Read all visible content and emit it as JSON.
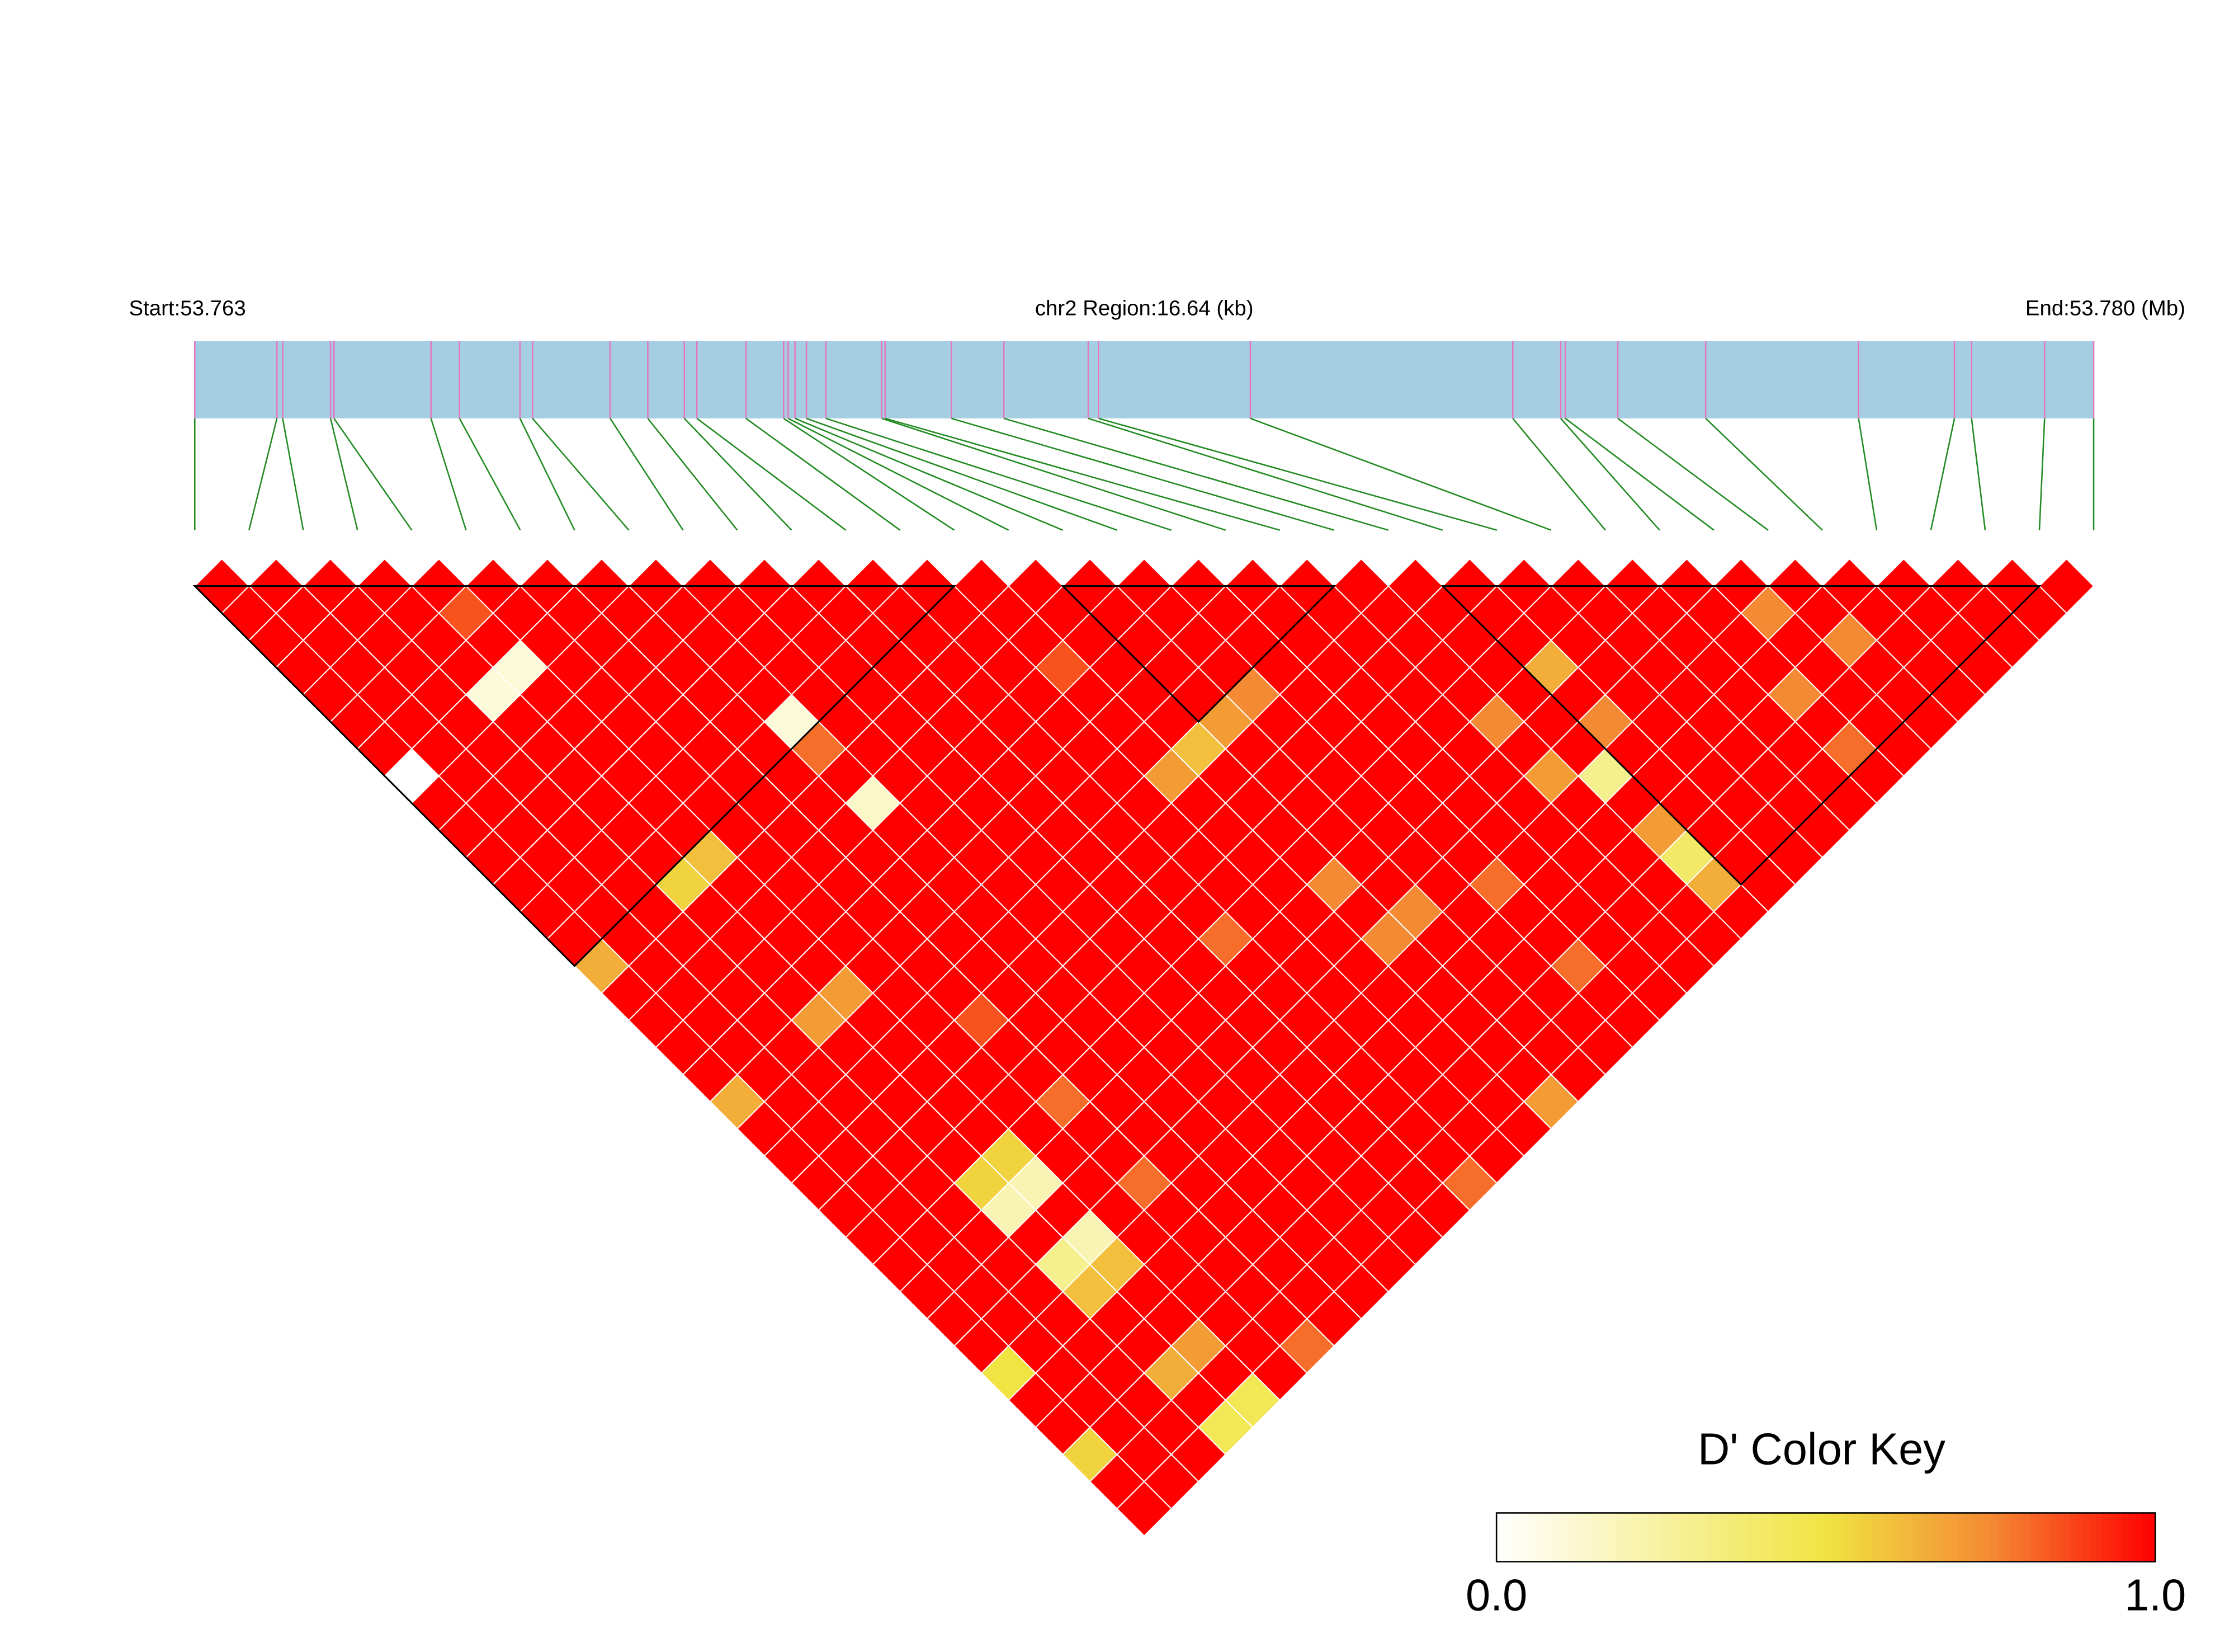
{
  "chart_data": {
    "type": "ld_heatmap",
    "start": {
      "value": 53.763,
      "label": "Start:53.763"
    },
    "end": {
      "value": 53.77964,
      "label": "End:53.780 (Mb)"
    },
    "region_label": "chr2 Region:16.64 (kb)",
    "snp_positions": [
      53.763,
      53.76372,
      53.76377,
      53.76419,
      53.76422,
      53.76507,
      53.76532,
      53.76585,
      53.76596,
      53.76664,
      53.76697,
      53.76729,
      53.7674,
      53.76783,
      53.76816,
      53.7682,
      53.76826,
      53.76836,
      53.76853,
      53.76902,
      53.76905,
      53.76963,
      53.77009,
      53.77083,
      53.77092,
      53.77225,
      53.77455,
      53.77497,
      53.77501,
      53.77547,
      53.77624,
      53.77758,
      53.77842,
      53.77857,
      53.77921,
      53.77964
    ],
    "dprime": [
      [
        1,
        1,
        1,
        1,
        1,
        1,
        1,
        0,
        1,
        1,
        1,
        1,
        1,
        1,
        0.65,
        1,
        1,
        1,
        1,
        0.65,
        1,
        1,
        1,
        1,
        1,
        1,
        1,
        1,
        1,
        0.5,
        1,
        1,
        0.55,
        1,
        1
      ],
      [
        1,
        1,
        1,
        1,
        1,
        1,
        1,
        1,
        1,
        1,
        1,
        1,
        1,
        1,
        1,
        1,
        1,
        1,
        1,
        1,
        1,
        1,
        1,
        1,
        1,
        1,
        1,
        1,
        1,
        1,
        1,
        1,
        1,
        1
      ],
      [
        1,
        1,
        1,
        1,
        1,
        1,
        1,
        1,
        1,
        1,
        1,
        1,
        1,
        1,
        1,
        1,
        1,
        1,
        1,
        1,
        1,
        1,
        1,
        1,
        1,
        1,
        1,
        1,
        1,
        1,
        1,
        1,
        1
      ],
      [
        1,
        1,
        1,
        1,
        0.1,
        1,
        1,
        1,
        1,
        1,
        1,
        0.55,
        1,
        1,
        1,
        1,
        0.7,
        1,
        1,
        1,
        1,
        1,
        0.55,
        0.2,
        1,
        0.3,
        0.6,
        1,
        1,
        0.65,
        1,
        0.45
      ],
      [
        1,
        0.85,
        1,
        0.1,
        1,
        1,
        1,
        1,
        1,
        1,
        0.6,
        1,
        1,
        1,
        1,
        0.7,
        1,
        1,
        1,
        1,
        1,
        0.55,
        0.2,
        1,
        0.2,
        0.6,
        1,
        1,
        0.7,
        1,
        0.45
      ],
      [
        1,
        1,
        1,
        1,
        1,
        1,
        1,
        1,
        1,
        1,
        1,
        1,
        1,
        1,
        1,
        1,
        1,
        1,
        1,
        1,
        1,
        1,
        1,
        1,
        1,
        1,
        1,
        1,
        1,
        1
      ],
      [
        1,
        1,
        1,
        1,
        1,
        1,
        1,
        1,
        1,
        1,
        1,
        1,
        1,
        1,
        1,
        1,
        0.85,
        1,
        1,
        0.8,
        1,
        1,
        0.8,
        1,
        1,
        1,
        1,
        1,
        0.8
      ],
      [
        1,
        1,
        1,
        1,
        1,
        1,
        1,
        1,
        1,
        1,
        1,
        1,
        1,
        1,
        1,
        1,
        1,
        1,
        1,
        1,
        1,
        1,
        1,
        1,
        1,
        1,
        1,
        1
      ],
      [
        1,
        1,
        1,
        1,
        1,
        0.1,
        0.8,
        1,
        0.15,
        1,
        1,
        1,
        1,
        1,
        1,
        1,
        1,
        1,
        1,
        1,
        1,
        1,
        1,
        1,
        1,
        1,
        1
      ],
      [
        1,
        1,
        1,
        1,
        1,
        1,
        1,
        1,
        1,
        1,
        1,
        1,
        1,
        1,
        1,
        1,
        1,
        1,
        1,
        1,
        1,
        1,
        1,
        1,
        1,
        1
      ],
      [
        1,
        1,
        1,
        1,
        1,
        1,
        1,
        1,
        1,
        1,
        1,
        1,
        1,
        1,
        1,
        1,
        1,
        1,
        1,
        1,
        1,
        1,
        1,
        1,
        1
      ],
      [
        1,
        1,
        1,
        1,
        1,
        1,
        1,
        1,
        1,
        1,
        1,
        1,
        1,
        1,
        1,
        1,
        1,
        1,
        1,
        1,
        1,
        1,
        1,
        1
      ],
      [
        1,
        1,
        1,
        1,
        1,
        1,
        1,
        1,
        1,
        1,
        1,
        1,
        1,
        0.8,
        1,
        1,
        1,
        1,
        1,
        1,
        1,
        1,
        0.8
      ],
      [
        1,
        1,
        1,
        1,
        1,
        1,
        1,
        1,
        1,
        1,
        1,
        1,
        1,
        1,
        1,
        1,
        1,
        1,
        1,
        1,
        1,
        1
      ],
      [
        1,
        1,
        1,
        0.85,
        1,
        1,
        1,
        0.7,
        1,
        1,
        1,
        1,
        1,
        1,
        1,
        1,
        1,
        1,
        1,
        1,
        1
      ],
      [
        1,
        1,
        1,
        1,
        1,
        1,
        0.6,
        1,
        1,
        1,
        1,
        0.75,
        1,
        0.75,
        1,
        1,
        1,
        1,
        1,
        0.7
      ],
      [
        1,
        1,
        1,
        1,
        1,
        0.7,
        1,
        1,
        1,
        1,
        1,
        1,
        0.75,
        1,
        1,
        1,
        1,
        1,
        1
      ],
      [
        1,
        1,
        1,
        1,
        0.75,
        1,
        1,
        1,
        1,
        1,
        1,
        1,
        1,
        1,
        1,
        1,
        1,
        1
      ],
      [
        1,
        1,
        1,
        1,
        1,
        1,
        1,
        1,
        1,
        1,
        1,
        0.8,
        1,
        1,
        0.8,
        1,
        1
      ],
      [
        1,
        1,
        1,
        1,
        1,
        1,
        1,
        1,
        1,
        1,
        1,
        1,
        1,
        1,
        1,
        1
      ],
      [
        1,
        1,
        1,
        1,
        1,
        1,
        1,
        1,
        1,
        1,
        1,
        1,
        1,
        1,
        1
      ],
      [
        1,
        1,
        1,
        1,
        1,
        0.75,
        1,
        0.7,
        1,
        1,
        1,
        1,
        1,
        1
      ],
      [
        1,
        1,
        1,
        1,
        1,
        1,
        1,
        0.3,
        1,
        0.7,
        0.4,
        0.65,
        1
      ],
      [
        1,
        1,
        1,
        0.65,
        1,
        0.75,
        1,
        1,
        1,
        1,
        1,
        1
      ],
      [
        1,
        1,
        1,
        1,
        1,
        1,
        1,
        1,
        1,
        1,
        1
      ],
      [
        1,
        1,
        1,
        1,
        1,
        1,
        1,
        1,
        1,
        1
      ],
      [
        1,
        1,
        1,
        1,
        1,
        1,
        1,
        1,
        1
      ],
      [
        1,
        1,
        1,
        1,
        0.75,
        1,
        0.8,
        1
      ],
      [
        1,
        0.75,
        1,
        1,
        1,
        1,
        1
      ],
      [
        1,
        1,
        0.75,
        1,
        1,
        1
      ],
      [
        1,
        1,
        1,
        1,
        1
      ],
      [
        1,
        1,
        1,
        1
      ],
      [
        1,
        1,
        1
      ],
      [
        1,
        1
      ],
      [
        1
      ]
    ],
    "blocks": [
      [
        0,
        14
      ],
      [
        16,
        21
      ],
      [
        23,
        34
      ]
    ],
    "bar_color": "#a6cee3",
    "tick_color": "#e377c2",
    "line_color": "#228b22",
    "color_key": {
      "title": "D' Color Key",
      "xlim": [
        0,
        1
      ],
      "xticks": [
        {
          "value": 0,
          "label": "0.0"
        },
        {
          "value": 1,
          "label": "1.0"
        }
      ],
      "stops": [
        {
          "value": 0,
          "color": "#ffffff"
        },
        {
          "value": 0.5,
          "color": "#f0e442"
        },
        {
          "value": 0.75,
          "color": "#f48a33"
        },
        {
          "value": 1,
          "color": "#ff0000"
        }
      ]
    }
  }
}
